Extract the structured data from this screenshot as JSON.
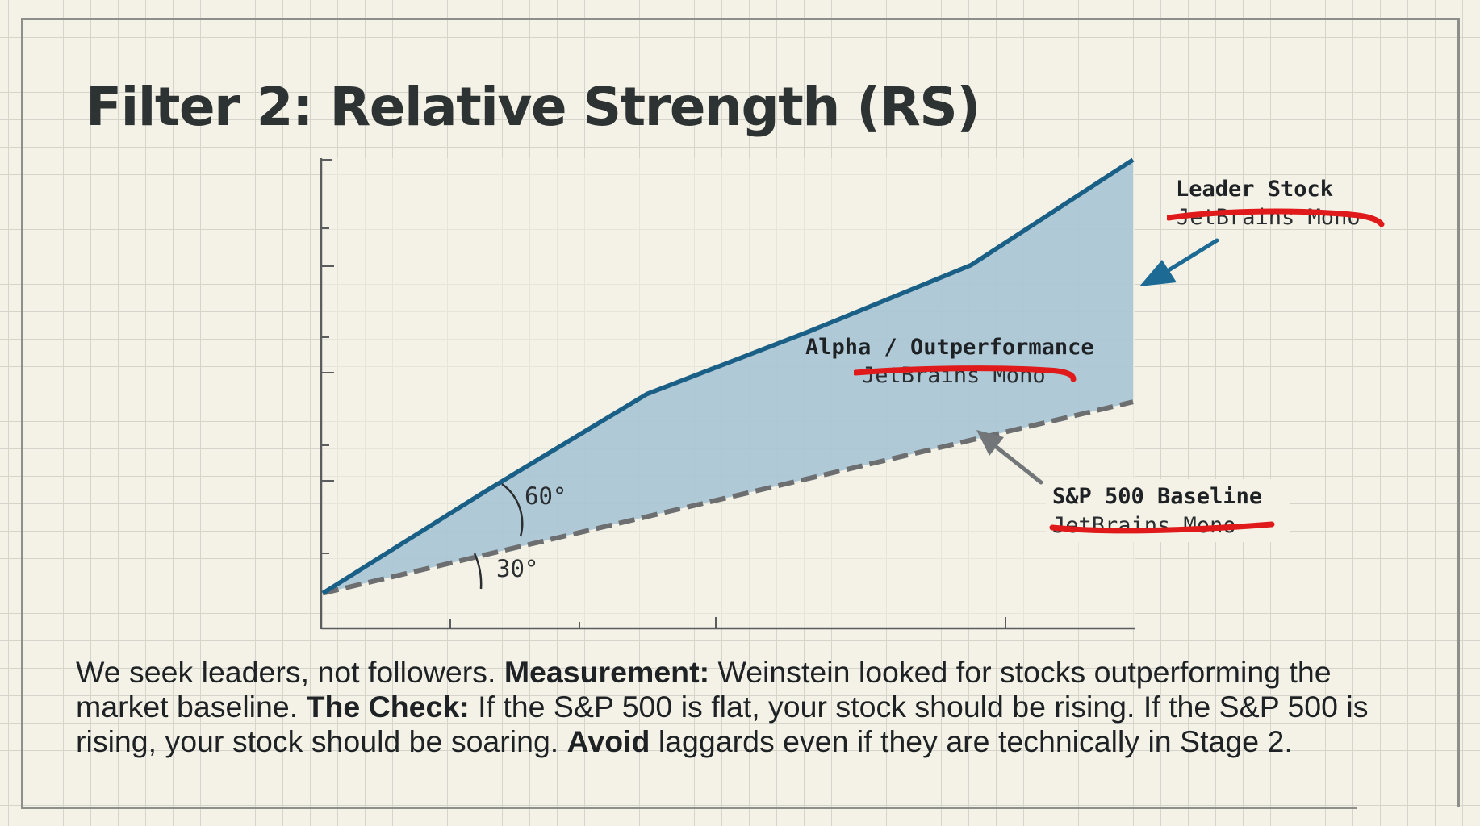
{
  "title": "Filter 2: Relative Strength (RS)",
  "chart_data": {
    "type": "line",
    "series": [
      {
        "name": "Leader Stock",
        "x": [
          0,
          1,
          2,
          3,
          4,
          5
        ],
        "values": [
          0,
          1.3,
          2.55,
          3.35,
          4.2,
          5.55
        ],
        "style": "solid",
        "color": "#1a5f86"
      },
      {
        "name": "S&P 500 Baseline",
        "x": [
          0,
          5
        ],
        "values": [
          0,
          2.45
        ],
        "style": "dashed",
        "color": "#6c6e6f"
      }
    ],
    "xlim": [
      0,
      5
    ],
    "ylim": [
      -0.45,
      5.55
    ],
    "fill_between": {
      "label": "Alpha / Outperformance",
      "color": "#a2c2d3"
    },
    "annotations": {
      "leader_label": "Leader Stock",
      "alpha_label": "Alpha / Outperformance",
      "baseline_label": "S&P 500 Baseline",
      "struck_text": "JetBrains Mono",
      "angle_leader": "60°",
      "angle_baseline": "30°"
    },
    "xlabel": "",
    "ylabel": "",
    "grid": true
  },
  "caption": {
    "p1": "We seek leaders, not followers. ",
    "b1": "Measurement:",
    "p2": " Weinstein looked for stocks outperforming the market baseline. ",
    "b2": "The Check:",
    "p3": " If the S&P 500 is flat, your stock should be rising. If the S&P 500 is rising, your stock should be soaring. ",
    "b3": "Avoid",
    "p4": " laggards even if they are technically in Stage 2."
  },
  "colors": {
    "leader_line": "#1a5f86",
    "baseline": "#6c6e6f",
    "fill": "#a2c2d3",
    "strike": "#e01a1a",
    "arrow_blue": "#1d6a95",
    "arrow_gray": "#737678"
  }
}
